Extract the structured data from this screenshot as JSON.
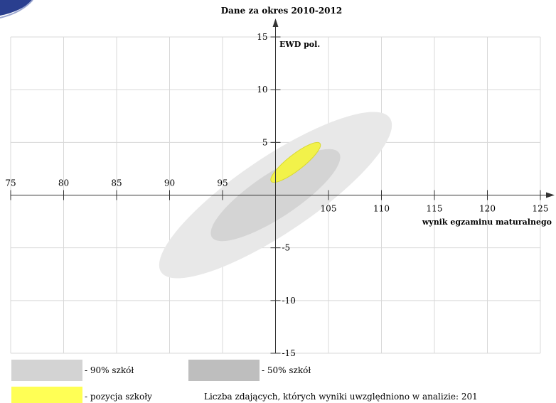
{
  "chart_data": {
    "type": "scatter",
    "title": "Dane za okres 2010-2012",
    "xlabel": "wynik egzaminu maturalnego",
    "ylabel": "EWD pol.",
    "xlim": [
      75,
      125
    ],
    "ylim": [
      -15,
      15
    ],
    "x_ticks": [
      75,
      80,
      85,
      90,
      95,
      100,
      105,
      110,
      115,
      120,
      125
    ],
    "y_ticks": [
      -15,
      -10,
      -5,
      0,
      5,
      10,
      15
    ],
    "x_tick_labels": [
      "75",
      "80",
      "85",
      "90",
      "95",
      "",
      "105",
      "110",
      "115",
      "120",
      "125"
    ],
    "y_tick_labels": [
      "-15",
      "-10",
      "-5",
      "",
      "5",
      "10",
      "15"
    ],
    "grid": true,
    "ellipses": [
      {
        "name": "90% szkół",
        "color": "#e8e8e8",
        "center": [
          100,
          0
        ],
        "major_axis": [
          [
            89.2,
            -7.3
          ],
          [
            110.8,
            7.3
          ]
        ],
        "minor_half": 3.6
      },
      {
        "name": "50% szkół",
        "color": "#d4d4d4",
        "center": [
          100,
          0
        ],
        "major_axis": [
          [
            94,
            -4
          ],
          [
            106,
            4
          ]
        ],
        "minor_half": 2.1
      },
      {
        "name": "pozycja szkoły",
        "color": "#f2f24a",
        "center": [
          101.9,
          3.1
        ],
        "major_axis": [
          [
            99.6,
            1.3
          ],
          [
            104.2,
            4.9
          ]
        ],
        "minor_half": 0.75
      }
    ]
  },
  "legend": {
    "items": [
      {
        "label": "- 90% szkół",
        "color": "#d3d3d3"
      },
      {
        "label": "- 50% szkół",
        "color": "#bebebe"
      },
      {
        "label": "- pozycja szkoły",
        "color": "#ffff55"
      }
    ],
    "note": "Liczba zdających, których wyniki uwzględniono w analizie: 201"
  },
  "logo": {
    "color": "#2a3f8f",
    "ring_color": "#9aa6d0"
  }
}
